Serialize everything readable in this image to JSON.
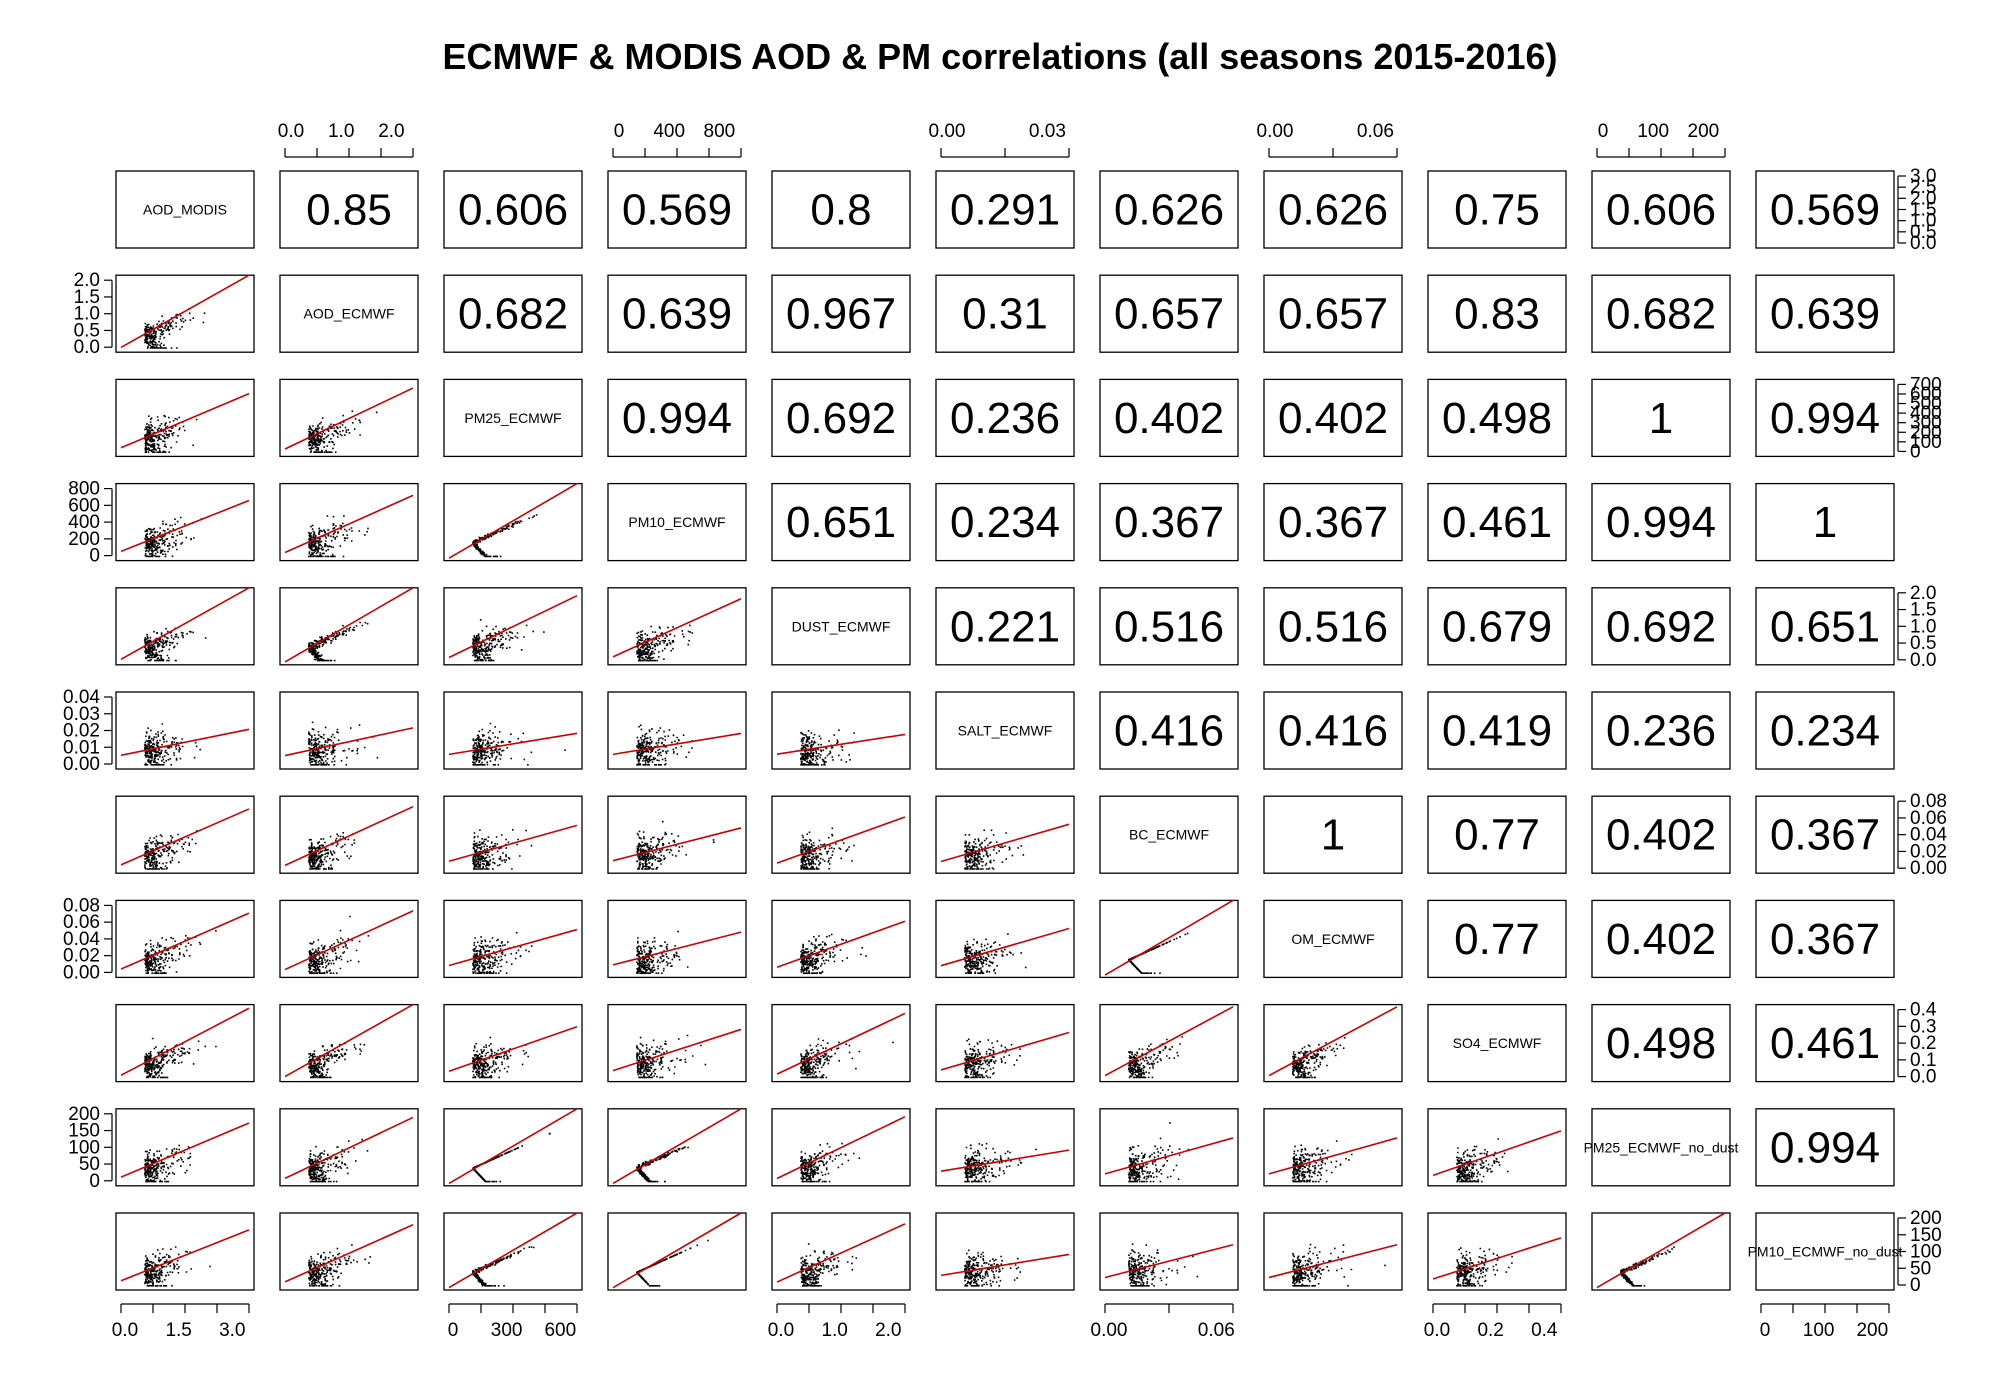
{
  "chart_data": {
    "type": "scatter",
    "title": "ECMWF & MODIS AOD & PM correlations (all seasons 2015-2016)",
    "variables": [
      "AOD_MODIS",
      "AOD_ECMWF",
      "PM25_ECMWF",
      "PM10_ECMWF",
      "DUST_ECMWF",
      "SALT_ECMWF",
      "BC_ECMWF",
      "OM_ECMWF",
      "SO4_ECMWF",
      "PM25_ECMWF_no_dust",
      "PM10_ECMWF_no_dust"
    ],
    "ranges": [
      [
        0,
        3.5
      ],
      [
        0,
        2.2
      ],
      [
        0,
        700
      ],
      [
        0,
        800
      ],
      [
        0,
        2.2
      ],
      [
        0,
        0.045
      ],
      [
        0,
        0.09
      ],
      [
        0,
        0.09
      ],
      [
        0,
        0.48
      ],
      [
        0,
        210
      ],
      [
        0,
        240
      ]
    ],
    "ticks": [
      [
        "0.0",
        "1.5",
        "3.0"
      ],
      [
        "0.0",
        "1.0",
        "2.0"
      ],
      [
        "0",
        "300",
        "600"
      ],
      [
        "0",
        "400",
        "800"
      ],
      [
        "0.0",
        "1.0",
        "2.0"
      ],
      [
        "0.00",
        "0.03"
      ],
      [
        "0.00",
        "0.06"
      ],
      [
        "0.00",
        "0.06"
      ],
      [
        "0.0",
        "0.2",
        "0.4"
      ],
      [
        "0",
        "100",
        "200"
      ],
      [
        "0",
        "100",
        "200"
      ]
    ],
    "left_axis_ticks": {
      "1": [
        "0.0",
        "0.5",
        "1.0",
        "1.5",
        "2.0"
      ],
      "3": [
        "0",
        "200",
        "400",
        "600",
        "800"
      ],
      "5": [
        "0.00",
        "0.01",
        "0.02",
        "0.03",
        "0.04"
      ],
      "7": [
        "0.00",
        "0.02",
        "0.04",
        "0.06",
        "0.08"
      ],
      "9": [
        "0",
        "50",
        "100",
        "150",
        "200"
      ]
    },
    "right_axis_ticks": {
      "0": [
        "0.0",
        "0.5",
        "1.0",
        "1.5",
        "2.0",
        "2.5",
        "3.0"
      ],
      "2": [
        "0",
        "100",
        "200",
        "300",
        "400",
        "500",
        "600",
        "700"
      ],
      "4": [
        "0.0",
        "0.5",
        "1.0",
        "1.5",
        "2.0"
      ],
      "6": [
        "0.00",
        "0.02",
        "0.04",
        "0.06",
        "0.08"
      ],
      "8": [
        "0.0",
        "0.1",
        "0.2",
        "0.3",
        "0.4"
      ],
      "10": [
        "0",
        "50",
        "100",
        "150",
        "200"
      ]
    },
    "correlations": [
      [
        null,
        "0.85",
        "0.606",
        "0.569",
        "0.8",
        "0.291",
        "0.626",
        "0.626",
        "0.75",
        "0.606",
        "0.569"
      ],
      [
        null,
        null,
        "0.682",
        "0.639",
        "0.967",
        "0.31",
        "0.657",
        "0.657",
        "0.83",
        "0.682",
        "0.639"
      ],
      [
        null,
        null,
        null,
        "0.994",
        "0.692",
        "0.236",
        "0.402",
        "0.402",
        "0.498",
        "1",
        "0.994"
      ],
      [
        null,
        null,
        null,
        null,
        "0.651",
        "0.234",
        "0.367",
        "0.367",
        "0.461",
        "0.994",
        "1"
      ],
      [
        null,
        null,
        null,
        null,
        null,
        "0.221",
        "0.516",
        "0.516",
        "0.679",
        "0.692",
        "0.651"
      ],
      [
        null,
        null,
        null,
        null,
        null,
        null,
        "0.416",
        "0.416",
        "0.419",
        "0.236",
        "0.234"
      ],
      [
        null,
        null,
        null,
        null,
        null,
        null,
        null,
        "1",
        "0.77",
        "0.402",
        "0.367"
      ],
      [
        null,
        null,
        null,
        null,
        null,
        null,
        null,
        null,
        "0.77",
        "0.402",
        "0.367"
      ],
      [
        null,
        null,
        null,
        null,
        null,
        null,
        null,
        null,
        null,
        "0.498",
        "0.461"
      ],
      [
        null,
        null,
        null,
        null,
        null,
        null,
        null,
        null,
        null,
        null,
        "0.994"
      ]
    ],
    "fit_line_color": "#cc0000",
    "point_color": "#000000"
  }
}
